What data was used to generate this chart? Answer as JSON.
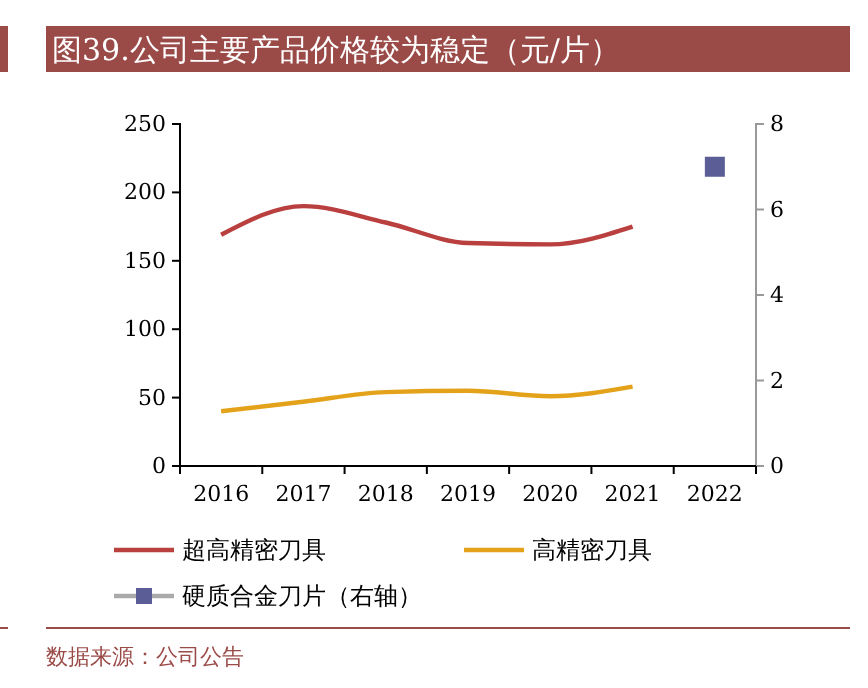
{
  "chart_data": {
    "type": "line",
    "title": "图39.公司主要产品价格较为稳定（元/片）",
    "categories": [
      "2016",
      "2017",
      "2018",
      "2019",
      "2020",
      "2021",
      "2022"
    ],
    "series": [
      {
        "name": "超高精密刀具",
        "color": "#b9403f",
        "values": [
          169,
          190,
          178,
          163,
          162,
          175,
          null
        ]
      },
      {
        "name": "高精密刀具",
        "color": "#e3a21a",
        "values": [
          40,
          47,
          54,
          55,
          51,
          58,
          null
        ]
      },
      {
        "name": "硬质合金刀片（右轴）",
        "color": "#5b5e96",
        "axis": "y2",
        "marker": "square",
        "values": [
          null,
          null,
          null,
          null,
          null,
          null,
          7
        ]
      }
    ],
    "ylim": [
      0,
      250
    ],
    "yticks": [
      0,
      50,
      100,
      150,
      200,
      250
    ],
    "y2lim": [
      0,
      8
    ],
    "y2ticks": [
      0,
      2,
      4,
      6,
      8
    ],
    "grid": false,
    "legend": "bottom",
    "annotations": [
      "数据来源：公司公告"
    ]
  }
}
